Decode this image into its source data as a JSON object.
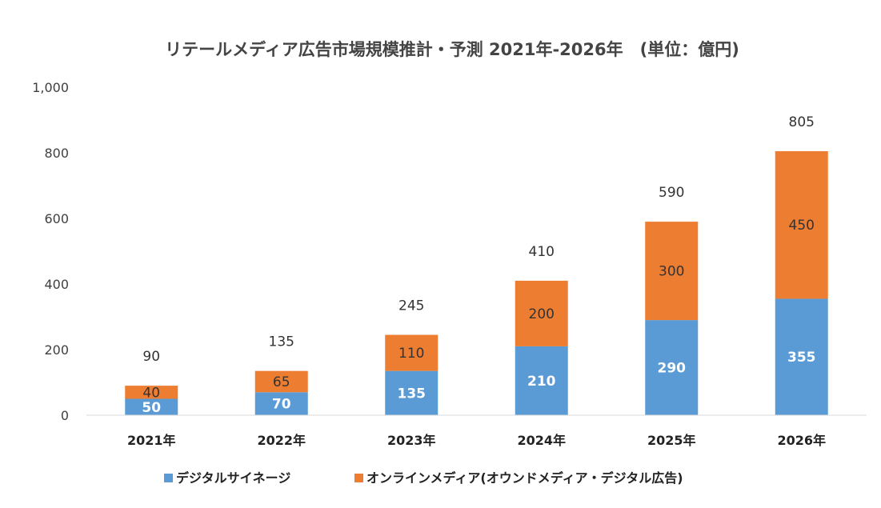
{
  "chart_data": {
    "type": "bar",
    "stacked": true,
    "title": "リテールメディア広告市場規模推計・予測 2021年-2026年　(単位：億円)",
    "categories": [
      "2021年",
      "2022年",
      "2023年",
      "2024年",
      "2025年",
      "2026年"
    ],
    "series": [
      {
        "name": "デジタルサイネージ",
        "color": "#5B9BD5",
        "values": [
          50,
          70,
          135,
          210,
          290,
          355
        ],
        "label_color": "white"
      },
      {
        "name": "オンラインメディア(オウンドメディア・デジタル広告)",
        "color": "#ED7D31",
        "values": [
          40,
          65,
          110,
          200,
          300,
          450
        ],
        "label_color": "dark"
      }
    ],
    "totals": [
      90,
      135,
      245,
      410,
      590,
      805
    ],
    "ylim": [
      0,
      1000
    ],
    "yticks": [
      0,
      200,
      400,
      600,
      800,
      1000
    ],
    "ytick_labels": [
      "0",
      "200",
      "400",
      "600",
      "800",
      "1,000"
    ],
    "xlabel": "",
    "ylabel": "",
    "grid": false,
    "legend_position": "bottom"
  }
}
